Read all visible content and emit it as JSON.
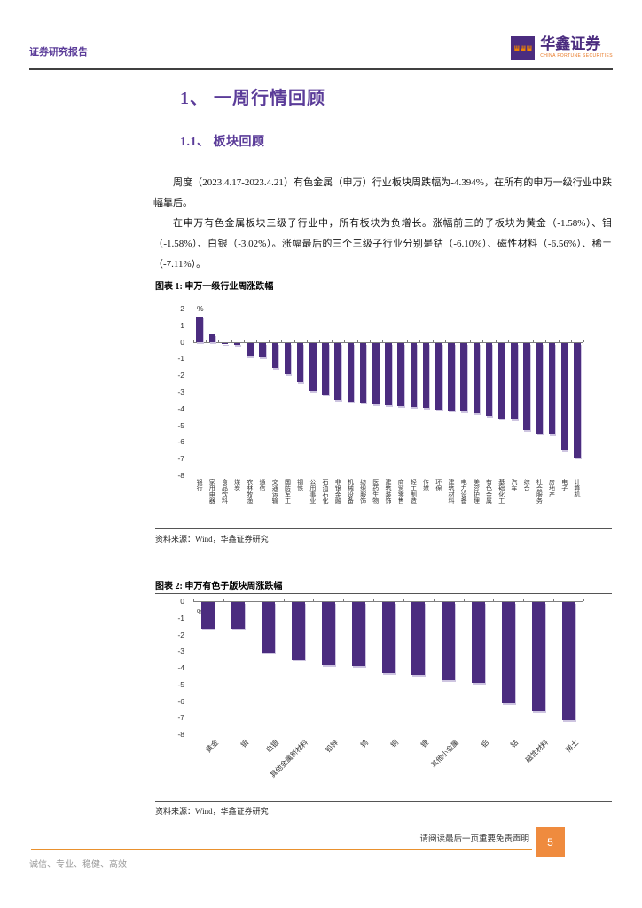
{
  "header": {
    "report_type": "证券研究报告",
    "brand_name": "华鑫证券",
    "brand_subtitle": "CHINA FORTUNE SECURITIES"
  },
  "section": {
    "title": "1、 一周行情回顾",
    "subtitle": "1.1、 板块回顾"
  },
  "paragraphs": [
    "周度（2023.4.17-2023.4.21）有色金属（申万）行业板块周跌幅为-4.394%，在所有的申万一级行业中跌幅靠后。",
    "在申万有色金属板块三级子行业中，所有板块为负增长。涨幅前三的子板块为黄金（-1.58%）、钼（-1.58%）、白银（-3.02%）。涨幅最后的三个三级子行业分别是钴（-6.10%）、磁性材料（-6.56%）、稀土（-7.11%）。"
  ],
  "figures": [
    {
      "caption": "图表 1: 申万一级行业周涨跌幅",
      "source": "资料来源：Wind，华鑫证券研究"
    },
    {
      "caption": "图表 2: 申万有色子版块周涨跌幅",
      "source": "资料来源：Wind，华鑫证券研究"
    }
  ],
  "footer": {
    "disclaimer": "请阅读最后一页重要免责声明",
    "page_number": "5",
    "motto": "诚信、专业、稳健、高效"
  },
  "colors": {
    "accent_purple": "#5b3c99",
    "brand_purple": "#4b2c7f",
    "bar_purple": "#4b2c7f",
    "accent_orange": "#ef8b3e",
    "logo_orange": "#f08300"
  },
  "chart_data": [
    {
      "type": "bar",
      "title": "申万一级行业周涨跌幅",
      "unit": "%",
      "ylim": [
        -8,
        2
      ],
      "grid": false,
      "legend": "none",
      "categories": [
        "银行",
        "家用电器",
        "食品饮料",
        "煤炭",
        "农林牧渔",
        "通信",
        "交通运输",
        "国防军工",
        "钢铁",
        "公用事业",
        "石油石化",
        "非银金融",
        "机械设备",
        "纺织服饰",
        "医药生物",
        "建筑装饰",
        "商贸零售",
        "轻工制造",
        "传媒",
        "环保",
        "建筑材料",
        "电力设备",
        "美容护理",
        "有色金属",
        "基础化工",
        "汽车",
        "综合",
        "社会服务",
        "房地产",
        "电子",
        "计算机"
      ],
      "values": [
        1.52,
        0.46,
        -0.06,
        -0.15,
        -0.83,
        -0.88,
        -1.5,
        -1.87,
        -2.35,
        -2.87,
        -3.1,
        -3.45,
        -3.52,
        -3.6,
        -3.68,
        -3.75,
        -3.8,
        -3.85,
        -3.92,
        -4.0,
        -4.05,
        -4.12,
        -4.25,
        -4.39,
        -4.55,
        -4.62,
        -5.25,
        -5.45,
        -5.5,
        -6.45,
        -6.9
      ]
    },
    {
      "type": "bar",
      "title": "申万有色子版块周涨跌幅",
      "unit": "%",
      "ylim": [
        -8,
        0
      ],
      "grid": false,
      "legend": "none",
      "categories": [
        "黄金",
        "钼",
        "白银",
        "其他金属新材料",
        "铅锌",
        "钨",
        "铜",
        "锂",
        "其他小金属",
        "铝",
        "钴",
        "磁性材料",
        "稀土"
      ],
      "values": [
        -1.58,
        -1.58,
        -3.02,
        -3.45,
        -3.8,
        -3.85,
        -4.25,
        -4.35,
        -4.7,
        -4.85,
        -6.1,
        -6.56,
        -7.11
      ]
    }
  ]
}
